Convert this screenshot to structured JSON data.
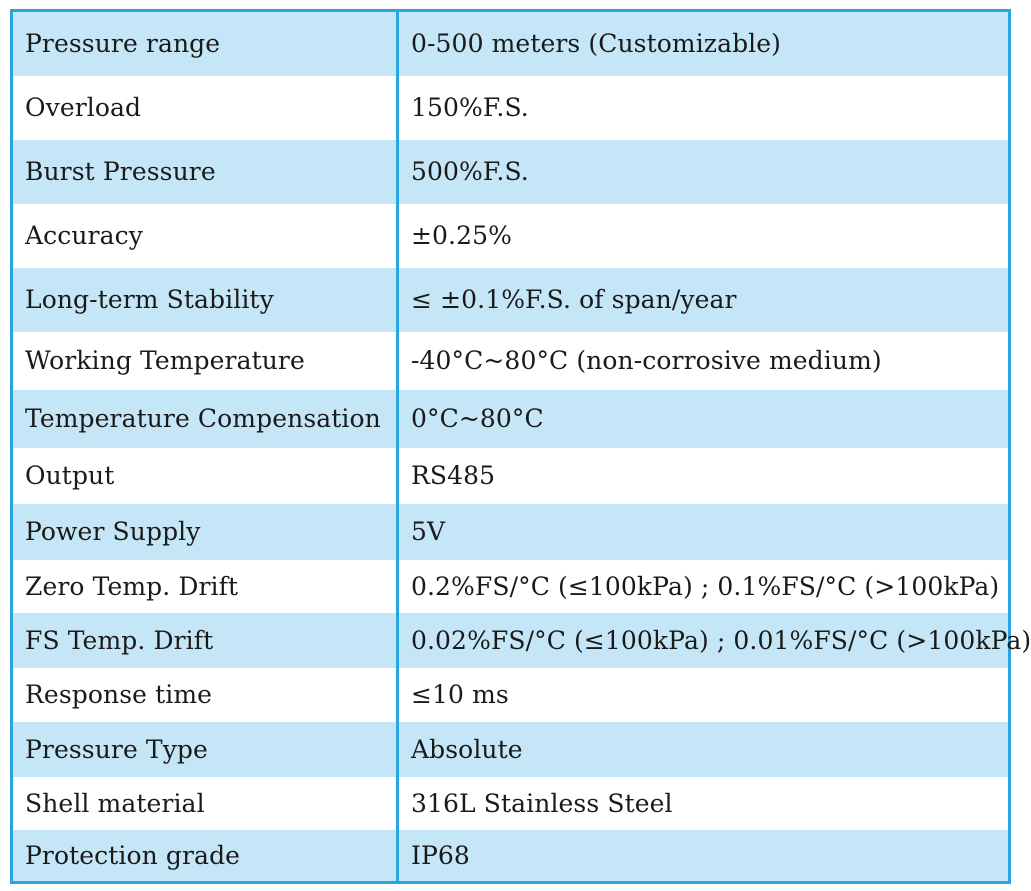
{
  "colors": {
    "border": "#29a6df",
    "shaded_row": "#c5e6f7",
    "plain_row": "#ffffff",
    "text": "#1a1a1a"
  },
  "specs": [
    {
      "label": "Pressure range",
      "value": " 0-500 meters (Customizable)"
    },
    {
      "label": "Overload",
      "value": "150%F.S."
    },
    {
      "label": "Burst Pressure",
      "value": "500%F.S."
    },
    {
      "label": "Accuracy",
      "value": "±0.25%"
    },
    {
      "label": "Long-term Stability",
      "value": " ≤ ±0.1%F.S. of span/year"
    },
    {
      "label": "Working Temperature",
      "value": " -40°C~80°C (non-corrosive medium)"
    },
    {
      "label": "Temperature Compensation",
      "value": " 0°C~80°C"
    },
    {
      "label": "Output",
      "value": " RS485"
    },
    {
      "label": "Power Supply",
      "value": "5V"
    },
    {
      "label": "Zero Temp. Drift",
      "value": "0.2%FS/°C (≤100kPa) ; 0.1%FS/°C (>100kPa)"
    },
    {
      "label": "FS Temp. Drift",
      "value": "0.02%FS/°C (≤100kPa) ; 0.01%FS/°C (>100kPa)"
    },
    {
      "label": "Response time",
      "value": "≤10 ms"
    },
    {
      "label": "Pressure Type",
      "value": "Absolute"
    },
    {
      "label": "Shell material",
      "value": " 316L Stainless Steel"
    },
    {
      "label": "Protection grade",
      "value": "IP68"
    }
  ]
}
